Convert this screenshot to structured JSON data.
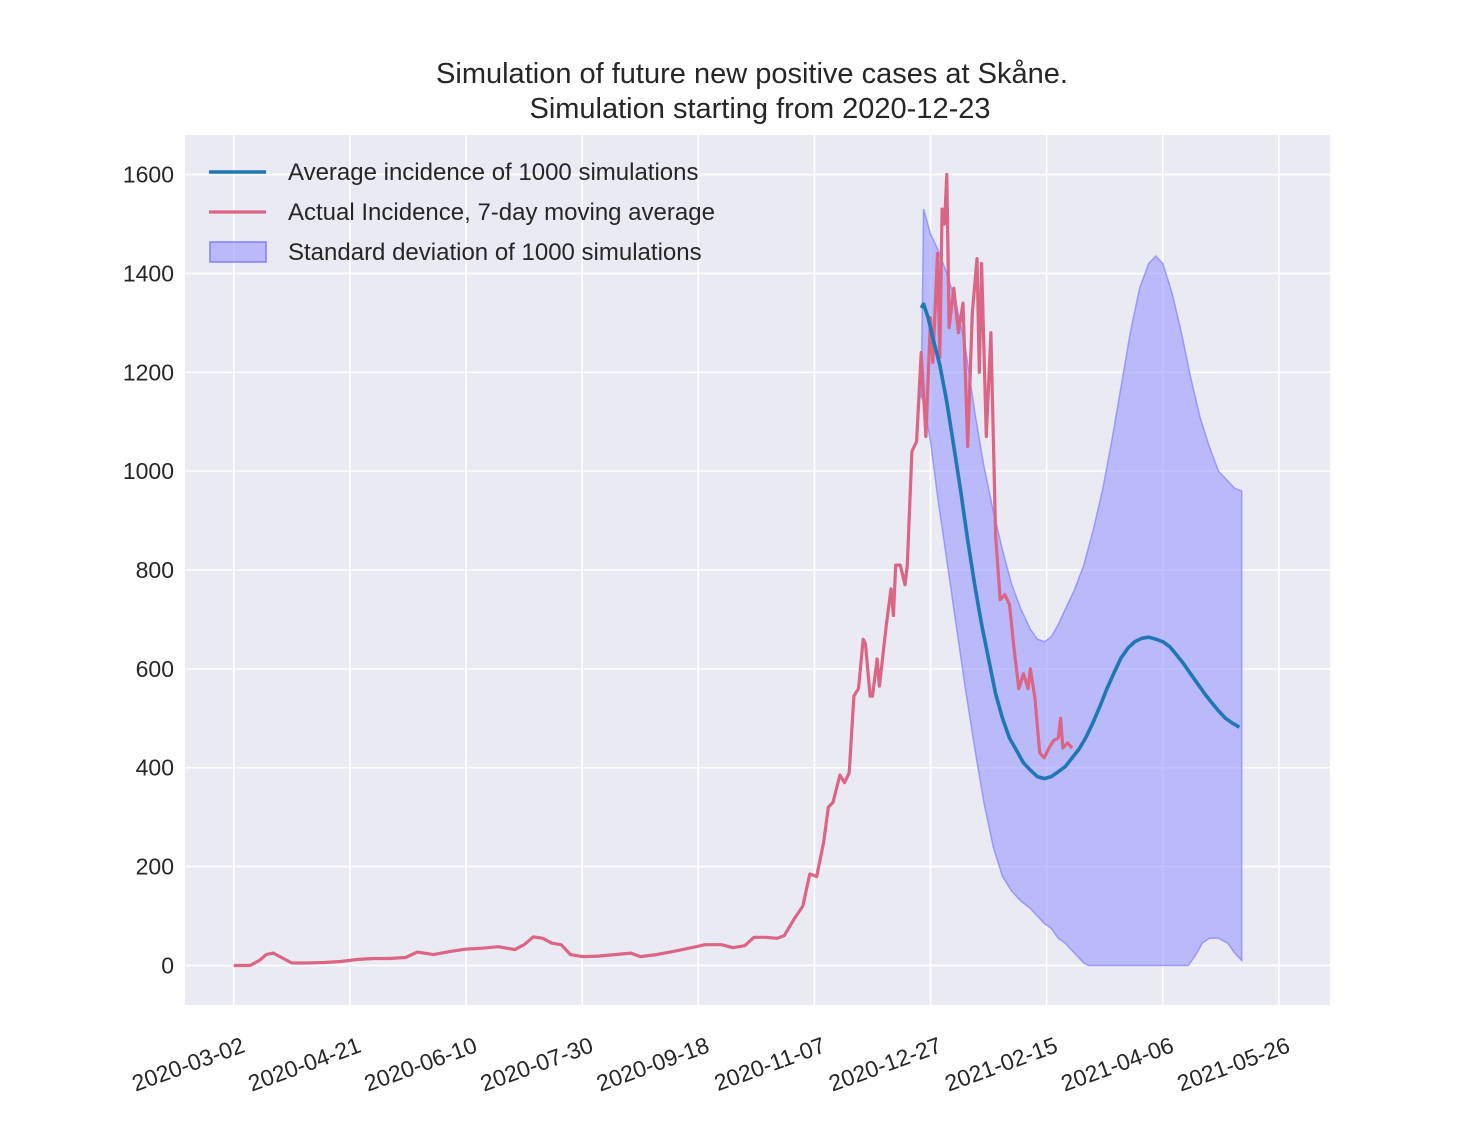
{
  "chart_data": {
    "type": "line",
    "title_line1": "Simulation of future new positive cases at Skåne.",
    "title_line2": "Simulation starting from 2020-12-23",
    "xlabel": "",
    "ylabel": "",
    "x_start": "2020-03-02",
    "x_ticks": [
      "2020-03-02",
      "2020-04-21",
      "2020-06-10",
      "2020-07-30",
      "2020-09-18",
      "2020-11-07",
      "2020-12-27",
      "2021-02-15",
      "2021-04-06",
      "2021-05-26"
    ],
    "y_ticks": [
      0,
      200,
      400,
      600,
      800,
      1000,
      1200,
      1400,
      1600
    ],
    "xlim": [
      "2020-02-10",
      "2021-06-17"
    ],
    "ylim": [
      -80,
      1680
    ],
    "grid": true,
    "legend_position": "top-left",
    "colors": {
      "background": "#eaeaf2",
      "grid": "#ffffff",
      "average": "#1f77b4",
      "actual": "#dc6484",
      "band_fill": "#9999ff",
      "band_edge": "#8080ff"
    },
    "series": [
      {
        "name": "Average incidence of 1000 simulations",
        "style": "line",
        "color": "#1f77b4",
        "points": [
          [
            "2020-12-23",
            1330
          ],
          [
            "2020-12-24",
            1338
          ],
          [
            "2020-12-26",
            1310
          ],
          [
            "2020-12-28",
            1270
          ],
          [
            "2020-12-31",
            1215
          ],
          [
            "2021-01-03",
            1140
          ],
          [
            "2021-01-06",
            1050
          ],
          [
            "2021-01-09",
            960
          ],
          [
            "2021-01-12",
            860
          ],
          [
            "2021-01-15",
            770
          ],
          [
            "2021-01-18",
            690
          ],
          [
            "2021-01-21",
            620
          ],
          [
            "2021-01-24",
            550
          ],
          [
            "2021-01-27",
            500
          ],
          [
            "2021-01-30",
            460
          ],
          [
            "2021-02-02",
            435
          ],
          [
            "2021-02-05",
            410
          ],
          [
            "2021-02-08",
            395
          ],
          [
            "2021-02-11",
            382
          ],
          [
            "2021-02-14",
            378
          ],
          [
            "2021-02-17",
            382
          ],
          [
            "2021-02-20",
            392
          ],
          [
            "2021-02-23",
            402
          ],
          [
            "2021-02-26",
            420
          ],
          [
            "2021-03-01",
            438
          ],
          [
            "2021-03-04",
            462
          ],
          [
            "2021-03-07",
            492
          ],
          [
            "2021-03-10",
            525
          ],
          [
            "2021-03-13",
            560
          ],
          [
            "2021-03-16",
            592
          ],
          [
            "2021-03-19",
            622
          ],
          [
            "2021-03-22",
            642
          ],
          [
            "2021-03-25",
            655
          ],
          [
            "2021-03-28",
            662
          ],
          [
            "2021-03-31",
            664
          ],
          [
            "2021-04-03",
            660
          ],
          [
            "2021-04-06",
            655
          ],
          [
            "2021-04-09",
            645
          ],
          [
            "2021-04-12",
            628
          ],
          [
            "2021-04-15",
            610
          ],
          [
            "2021-04-18",
            590
          ],
          [
            "2021-04-21",
            570
          ],
          [
            "2021-04-24",
            550
          ],
          [
            "2021-04-27",
            532
          ],
          [
            "2021-04-30",
            515
          ],
          [
            "2021-05-03",
            500
          ],
          [
            "2021-05-06",
            490
          ],
          [
            "2021-05-09",
            482
          ]
        ]
      },
      {
        "name": "Actual Incidence, 7-day moving average",
        "style": "line",
        "color": "#dc6484",
        "points": [
          [
            "2020-03-02",
            0
          ],
          [
            "2020-03-09",
            0
          ],
          [
            "2020-03-13",
            10
          ],
          [
            "2020-03-16",
            22
          ],
          [
            "2020-03-19",
            25
          ],
          [
            "2020-03-23",
            15
          ],
          [
            "2020-03-27",
            5
          ],
          [
            "2020-04-03",
            5
          ],
          [
            "2020-04-10",
            6
          ],
          [
            "2020-04-17",
            8
          ],
          [
            "2020-04-24",
            12
          ],
          [
            "2020-05-01",
            14
          ],
          [
            "2020-05-08",
            14
          ],
          [
            "2020-05-15",
            16
          ],
          [
            "2020-05-20",
            27
          ],
          [
            "2020-05-27",
            22
          ],
          [
            "2020-06-03",
            28
          ],
          [
            "2020-06-10",
            33
          ],
          [
            "2020-06-17",
            35
          ],
          [
            "2020-06-24",
            38
          ],
          [
            "2020-07-01",
            32
          ],
          [
            "2020-07-05",
            42
          ],
          [
            "2020-07-09",
            58
          ],
          [
            "2020-07-13",
            55
          ],
          [
            "2020-07-17",
            45
          ],
          [
            "2020-07-21",
            42
          ],
          [
            "2020-07-25",
            22
          ],
          [
            "2020-07-30",
            18
          ],
          [
            "2020-08-06",
            19
          ],
          [
            "2020-08-13",
            22
          ],
          [
            "2020-08-20",
            25
          ],
          [
            "2020-08-24",
            18
          ],
          [
            "2020-08-31",
            22
          ],
          [
            "2020-09-07",
            28
          ],
          [
            "2020-09-14",
            35
          ],
          [
            "2020-09-21",
            42
          ],
          [
            "2020-09-28",
            42
          ],
          [
            "2020-10-03",
            36
          ],
          [
            "2020-10-08",
            40
          ],
          [
            "2020-10-12",
            57
          ],
          [
            "2020-10-17",
            57
          ],
          [
            "2020-10-22",
            55
          ],
          [
            "2020-10-25",
            60
          ],
          [
            "2020-10-29",
            92
          ],
          [
            "2020-11-02",
            120
          ],
          [
            "2020-11-05",
            185
          ],
          [
            "2020-11-08",
            180
          ],
          [
            "2020-11-11",
            250
          ],
          [
            "2020-11-13",
            320
          ],
          [
            "2020-11-15",
            330
          ],
          [
            "2020-11-18",
            385
          ],
          [
            "2020-11-20",
            370
          ],
          [
            "2020-11-22",
            390
          ],
          [
            "2020-11-24",
            545
          ],
          [
            "2020-11-26",
            560
          ],
          [
            "2020-11-28",
            660
          ],
          [
            "2020-11-29",
            650
          ],
          [
            "2020-12-01",
            545
          ],
          [
            "2020-12-02",
            545
          ],
          [
            "2020-12-04",
            620
          ],
          [
            "2020-12-05",
            565
          ],
          [
            "2020-12-08",
            690
          ],
          [
            "2020-12-10",
            762
          ],
          [
            "2020-12-11",
            708
          ],
          [
            "2020-12-12",
            810
          ],
          [
            "2020-12-14",
            810
          ],
          [
            "2020-12-16",
            770
          ],
          [
            "2020-12-17",
            810
          ],
          [
            "2020-12-19",
            1040
          ],
          [
            "2020-12-21",
            1060
          ],
          [
            "2020-12-23",
            1240
          ],
          [
            "2020-12-25",
            1070
          ],
          [
            "2020-12-27",
            1310
          ],
          [
            "2020-12-28",
            1220
          ],
          [
            "2020-12-30",
            1440
          ],
          [
            "2020-12-31",
            1230
          ],
          [
            "2021-01-01",
            1530
          ],
          [
            "2021-01-02",
            1500
          ],
          [
            "2021-01-03",
            1600
          ],
          [
            "2021-01-04",
            1290
          ],
          [
            "2021-01-06",
            1370
          ],
          [
            "2021-01-08",
            1280
          ],
          [
            "2021-01-10",
            1340
          ],
          [
            "2021-01-12",
            1050
          ],
          [
            "2021-01-14",
            1320
          ],
          [
            "2021-01-16",
            1430
          ],
          [
            "2021-01-17",
            1200
          ],
          [
            "2021-01-18",
            1420
          ],
          [
            "2021-01-20",
            1070
          ],
          [
            "2021-01-22",
            1280
          ],
          [
            "2021-01-24",
            870
          ],
          [
            "2021-01-26",
            740
          ],
          [
            "2021-01-28",
            750
          ],
          [
            "2021-01-30",
            730
          ],
          [
            "2021-02-01",
            640
          ],
          [
            "2021-02-03",
            560
          ],
          [
            "2021-02-05",
            590
          ],
          [
            "2021-02-07",
            560
          ],
          [
            "2021-02-08",
            600
          ],
          [
            "2021-02-10",
            540
          ],
          [
            "2021-02-12",
            430
          ],
          [
            "2021-02-14",
            420
          ],
          [
            "2021-02-16",
            440
          ],
          [
            "2021-02-18",
            455
          ],
          [
            "2021-02-20",
            460
          ],
          [
            "2021-02-21",
            500
          ],
          [
            "2021-02-22",
            440
          ],
          [
            "2021-02-24",
            450
          ],
          [
            "2021-02-26",
            440
          ]
        ]
      },
      {
        "name": "Standard deviation of 1000 simulations",
        "style": "band",
        "color": "#9999ff",
        "upper": [
          [
            "2020-12-23",
            1150
          ],
          [
            "2020-12-24",
            1530
          ],
          [
            "2020-12-27",
            1480
          ],
          [
            "2020-12-30",
            1450
          ],
          [
            "2021-01-03",
            1400
          ],
          [
            "2021-01-07",
            1340
          ],
          [
            "2021-01-11",
            1250
          ],
          [
            "2021-01-15",
            1120
          ],
          [
            "2021-01-19",
            1010
          ],
          [
            "2021-01-23",
            920
          ],
          [
            "2021-01-27",
            840
          ],
          [
            "2021-01-31",
            770
          ],
          [
            "2021-02-04",
            720
          ],
          [
            "2021-02-08",
            680
          ],
          [
            "2021-02-11",
            660
          ],
          [
            "2021-02-14",
            655
          ],
          [
            "2021-02-17",
            665
          ],
          [
            "2021-02-20",
            690
          ],
          [
            "2021-02-23",
            720
          ],
          [
            "2021-02-27",
            760
          ],
          [
            "2021-03-03",
            810
          ],
          [
            "2021-03-07",
            880
          ],
          [
            "2021-03-11",
            960
          ],
          [
            "2021-03-15",
            1060
          ],
          [
            "2021-03-19",
            1170
          ],
          [
            "2021-03-23",
            1280
          ],
          [
            "2021-03-27",
            1370
          ],
          [
            "2021-03-31",
            1420
          ],
          [
            "2021-04-03",
            1435
          ],
          [
            "2021-04-06",
            1420
          ],
          [
            "2021-04-10",
            1360
          ],
          [
            "2021-04-14",
            1280
          ],
          [
            "2021-04-18",
            1190
          ],
          [
            "2021-04-22",
            1110
          ],
          [
            "2021-04-26",
            1050
          ],
          [
            "2021-04-30",
            1000
          ],
          [
            "2021-05-04",
            980
          ],
          [
            "2021-05-07",
            965
          ],
          [
            "2021-05-10",
            960
          ]
        ],
        "lower": [
          [
            "2020-12-23",
            1150
          ],
          [
            "2020-12-24",
            1140
          ],
          [
            "2020-12-27",
            1060
          ],
          [
            "2020-12-30",
            950
          ],
          [
            "2021-01-03",
            820
          ],
          [
            "2021-01-07",
            690
          ],
          [
            "2021-01-11",
            560
          ],
          [
            "2021-01-15",
            440
          ],
          [
            "2021-01-19",
            330
          ],
          [
            "2021-01-23",
            240
          ],
          [
            "2021-01-27",
            180
          ],
          [
            "2021-01-31",
            150
          ],
          [
            "2021-02-04",
            130
          ],
          [
            "2021-02-08",
            115
          ],
          [
            "2021-02-11",
            100
          ],
          [
            "2021-02-14",
            85
          ],
          [
            "2021-02-17",
            75
          ],
          [
            "2021-02-20",
            55
          ],
          [
            "2021-02-23",
            45
          ],
          [
            "2021-02-27",
            25
          ],
          [
            "2021-03-03",
            5
          ],
          [
            "2021-03-05",
            0
          ],
          [
            "2021-04-17",
            0
          ],
          [
            "2021-04-20",
            20
          ],
          [
            "2021-04-23",
            45
          ],
          [
            "2021-04-26",
            55
          ],
          [
            "2021-04-30",
            55
          ],
          [
            "2021-05-04",
            45
          ],
          [
            "2021-05-07",
            25
          ],
          [
            "2021-05-10",
            10
          ]
        ]
      }
    ]
  }
}
